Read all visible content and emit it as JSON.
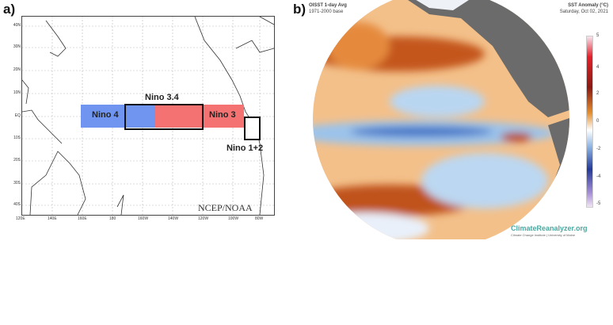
{
  "panel_a": {
    "label": "a)",
    "regions": [
      {
        "name": "Nino 4",
        "color": "#6f95f0"
      },
      {
        "name": "Nino 3.4",
        "color": "#000000"
      },
      {
        "name": "Nino 3",
        "color": "#f47272"
      },
      {
        "name": "Nino 1+2",
        "color": "#ffffff"
      }
    ],
    "lat_ticks": [
      "40N",
      "30N",
      "20N",
      "10N",
      "EQ",
      "10S",
      "20S",
      "30S",
      "40S"
    ],
    "lon_ticks": [
      "120E",
      "140E",
      "160E",
      "180",
      "160W",
      "140W",
      "120W",
      "100W",
      "80W"
    ],
    "credit": "NCEP/NOAA"
  },
  "panel_b": {
    "label": "b)",
    "title_left": "OISST 1-day Avg",
    "subtitle_left": "1971-2000 base",
    "title_right": "SST Anomaly (°C)",
    "subtitle_right": "Saturday, Oct 02, 2021",
    "colorbar_ticks": [
      "5",
      "4",
      "2",
      "0",
      "-2",
      "-4",
      "-5"
    ],
    "brand": "ClimateReanalyzer.org",
    "brand_sub": "Climate Change Institute | University of Maine"
  }
}
